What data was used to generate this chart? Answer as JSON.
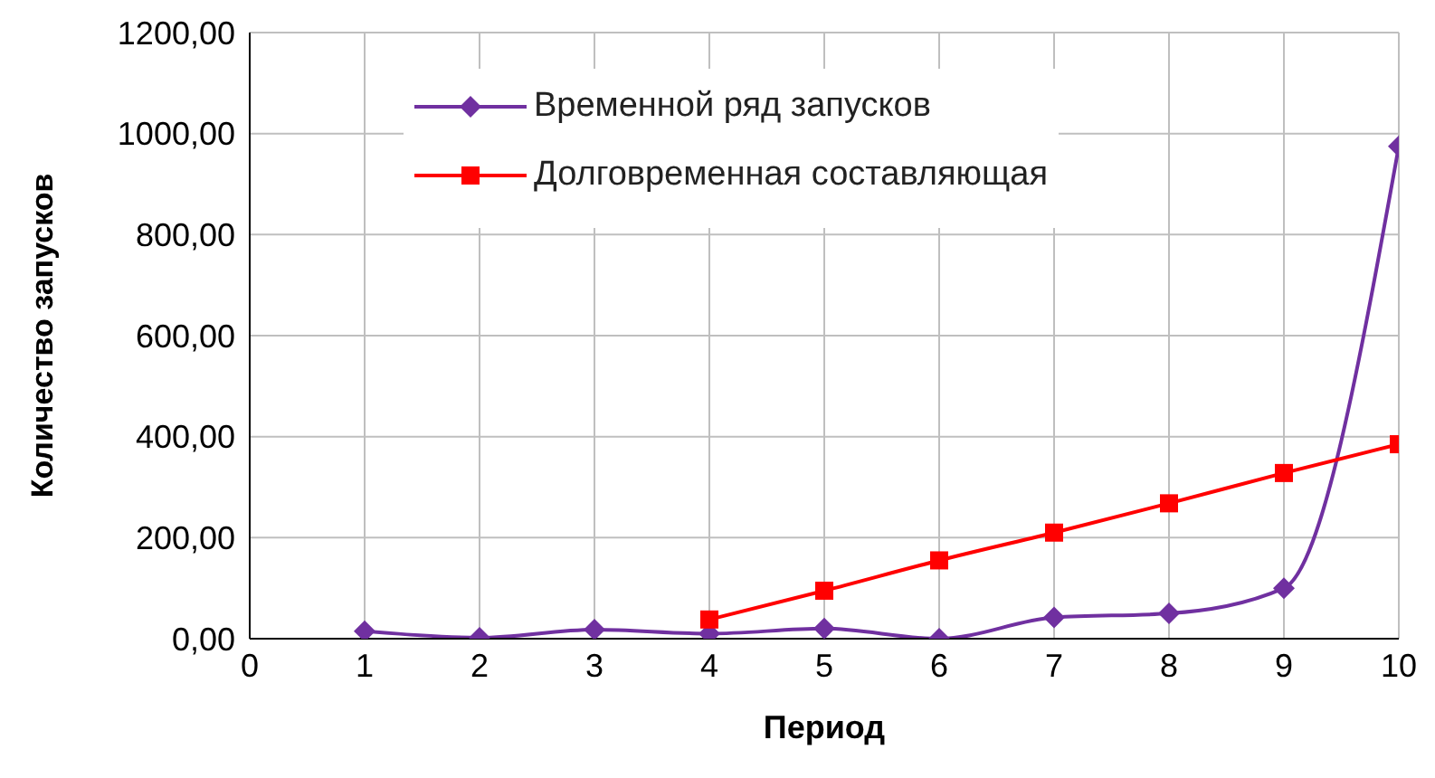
{
  "chart_data": {
    "type": "line",
    "xlabel": "Период",
    "ylabel": "Количество запусков",
    "xlim": [
      0,
      10
    ],
    "xticks": [
      0,
      1,
      2,
      3,
      4,
      5,
      6,
      7,
      8,
      9,
      10
    ],
    "ylim": [
      0,
      1200
    ],
    "yticks": [
      {
        "value": 0,
        "label": "0,00"
      },
      {
        "value": 200,
        "label": "200,00"
      },
      {
        "value": 400,
        "label": "400,00"
      },
      {
        "value": 600,
        "label": "600,00"
      },
      {
        "value": 800,
        "label": "800,00"
      },
      {
        "value": 1000,
        "label": "1000,00"
      },
      {
        "value": 1200,
        "label": "1200,00"
      }
    ],
    "grid": true,
    "legend": "top",
    "series": [
      {
        "name": "Временной ряд запусков",
        "color": "#7030a0",
        "marker": "diamond",
        "x": [
          1,
          2,
          3,
          4,
          5,
          6,
          7,
          8,
          9,
          10
        ],
        "values": [
          15,
          2,
          18,
          10,
          20,
          0,
          42,
          50,
          100,
          975
        ]
      },
      {
        "name": "Долговременная составляющая",
        "color": "#ff0000",
        "marker": "square",
        "x": [
          4,
          5,
          6,
          7,
          8,
          9,
          10
        ],
        "values": [
          38,
          95,
          155,
          210,
          268,
          328,
          385
        ]
      }
    ]
  }
}
